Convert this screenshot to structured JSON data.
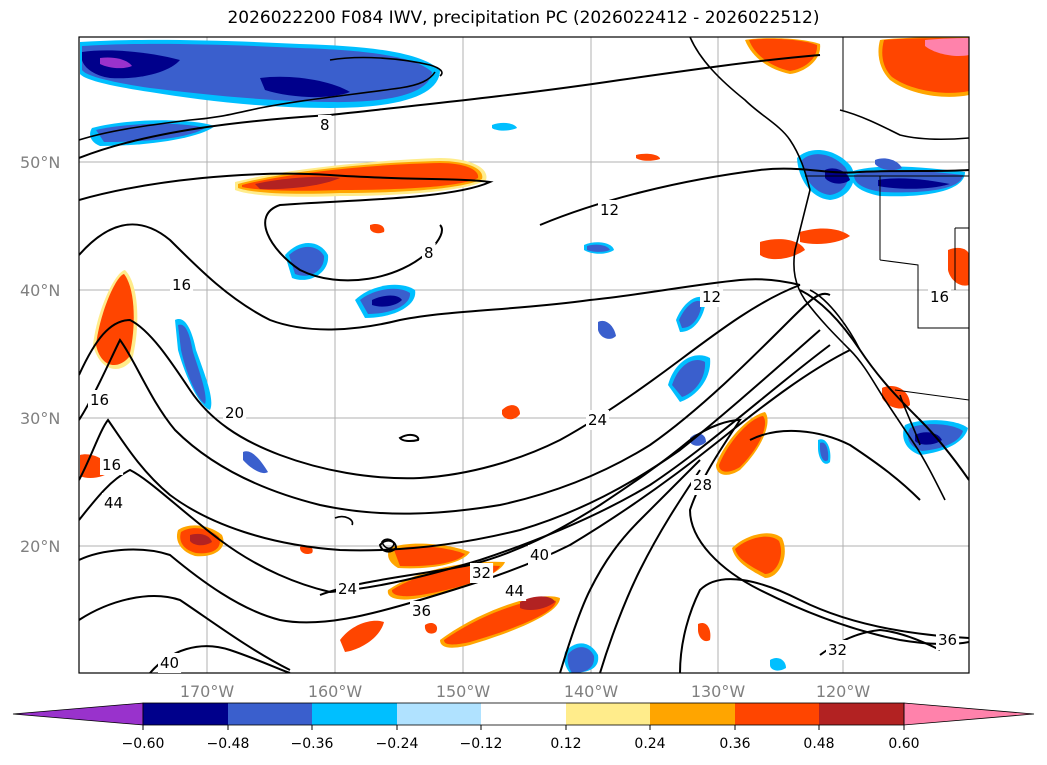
{
  "title": "2026022200 F084 IWV, precipitation PC (2026022412 - 2026022512)",
  "map": {
    "lat_labels": [
      "50°N",
      "40°N",
      "30°N",
      "20°N"
    ],
    "lon_labels": [
      "170°W",
      "160°W",
      "150°W",
      "140°W",
      "130°W",
      "120°W"
    ],
    "contour_labels": [
      "8",
      "8",
      "12",
      "12",
      "16",
      "16",
      "16",
      "20",
      "24",
      "24",
      "28",
      "32",
      "32",
      "36",
      "36",
      "40",
      "40",
      "44",
      "44",
      "16"
    ],
    "land_color": "#ffffff",
    "coast_color": "#000000",
    "grid_color": "#b0b0b0"
  },
  "colorbar": {
    "ticks": [
      "−0.60",
      "−0.48",
      "−0.36",
      "−0.24",
      "−0.12",
      "0.12",
      "0.24",
      "0.36",
      "0.48",
      "0.60"
    ],
    "colors": [
      "#9932cc",
      "#00008b",
      "#3a5fcd",
      "#00bfff",
      "#b0e2ff",
      "#ffffff",
      "#ffec8b",
      "#ffa500",
      "#ff4500",
      "#b22222",
      "#ff82ab"
    ]
  }
}
